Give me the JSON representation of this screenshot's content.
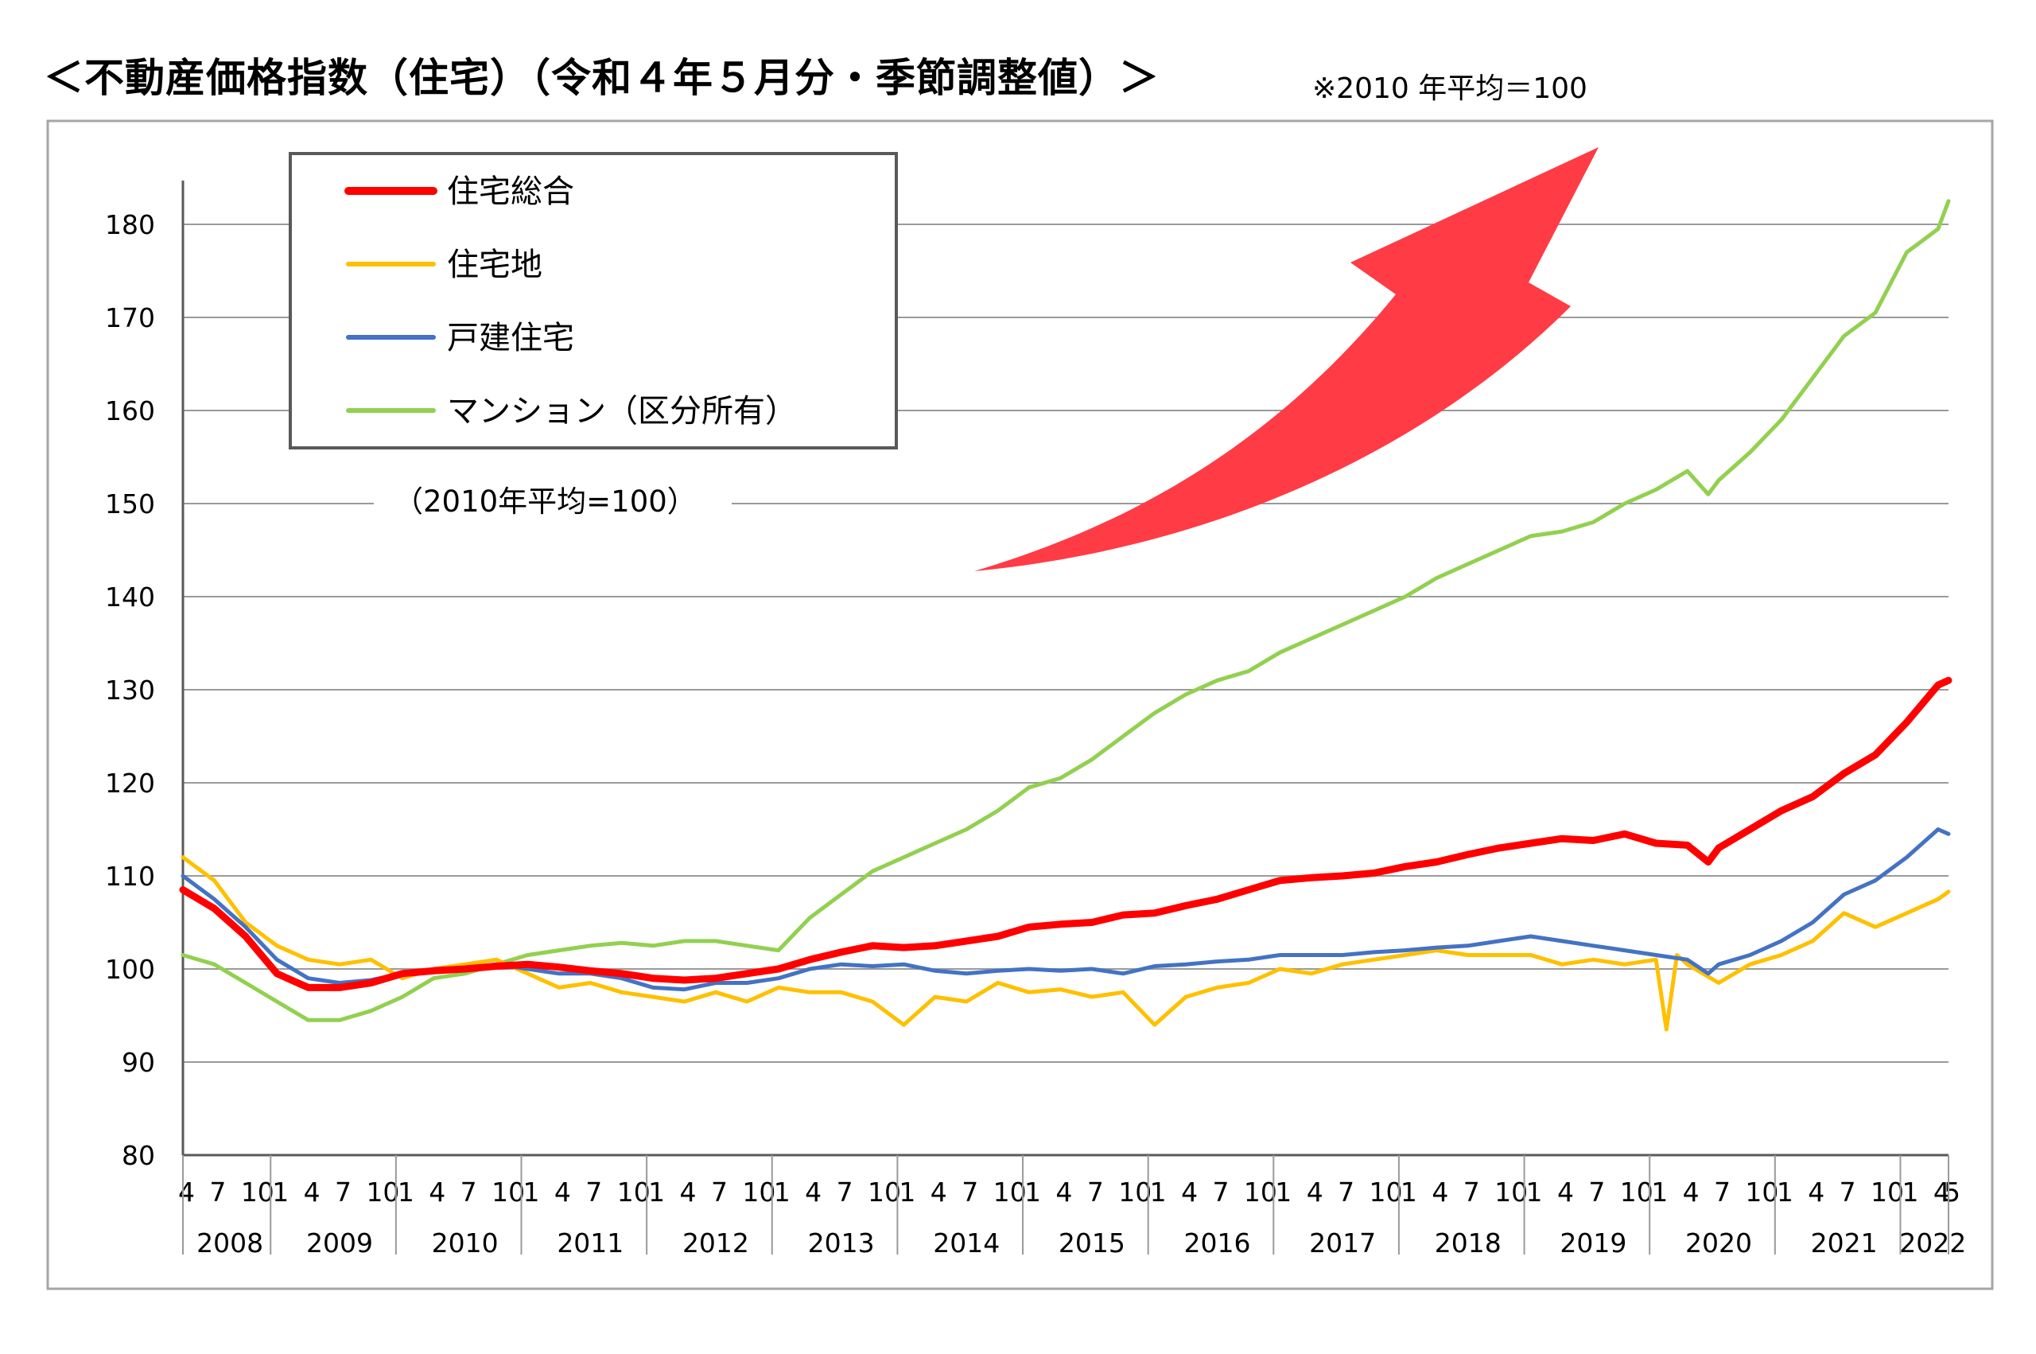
{
  "page": {
    "title": "＜不動産価格指数（住宅）（令和４年５月分・季節調整値）＞",
    "note": "※2010 年平均＝100"
  },
  "chart_data": {
    "type": "line",
    "ylim": [
      80,
      180
    ],
    "yticks": [
      80,
      90,
      100,
      110,
      120,
      130,
      140,
      150,
      160,
      170,
      180
    ],
    "grid": true,
    "legend_position": "top-left",
    "inner_note": "（2010年平均=100）",
    "x_month_labels": [
      "1",
      "4",
      "7",
      "10"
    ],
    "first_year_month_labels": [
      "4",
      "7",
      "10"
    ],
    "last_year_month_labels": [
      "1",
      "4",
      "5"
    ],
    "years": [
      "2008",
      "2009",
      "2010",
      "2011",
      "2012",
      "2013",
      "2014",
      "2015",
      "2016",
      "2017",
      "2018",
      "2019",
      "2020",
      "2021",
      "2022"
    ],
    "x_range": [
      "2008-04",
      "2022-05"
    ],
    "series": [
      {
        "name": "住宅総合",
        "color": "#ff0000",
        "points": [
          [
            "2008-04",
            108.5
          ],
          [
            "2008-07",
            106.5
          ],
          [
            "2008-10",
            103.5
          ],
          [
            "2009-01",
            99.5
          ],
          [
            "2009-04",
            98.0
          ],
          [
            "2009-07",
            98.0
          ],
          [
            "2009-10",
            98.5
          ],
          [
            "2010-01",
            99.5
          ],
          [
            "2010-04",
            99.8
          ],
          [
            "2010-07",
            100.0
          ],
          [
            "2010-10",
            100.3
          ],
          [
            "2011-01",
            100.5
          ],
          [
            "2011-04",
            100.2
          ],
          [
            "2011-07",
            99.8
          ],
          [
            "2011-10",
            99.5
          ],
          [
            "2012-01",
            99.0
          ],
          [
            "2012-04",
            98.8
          ],
          [
            "2012-07",
            99.0
          ],
          [
            "2012-10",
            99.5
          ],
          [
            "2013-01",
            100.0
          ],
          [
            "2013-04",
            101.0
          ],
          [
            "2013-07",
            101.8
          ],
          [
            "2013-10",
            102.5
          ],
          [
            "2014-01",
            102.3
          ],
          [
            "2014-04",
            102.5
          ],
          [
            "2014-07",
            103.0
          ],
          [
            "2014-10",
            103.5
          ],
          [
            "2015-01",
            104.5
          ],
          [
            "2015-04",
            104.8
          ],
          [
            "2015-07",
            105.0
          ],
          [
            "2015-10",
            105.8
          ],
          [
            "2016-01",
            106.0
          ],
          [
            "2016-04",
            106.8
          ],
          [
            "2016-07",
            107.5
          ],
          [
            "2016-10",
            108.5
          ],
          [
            "2017-01",
            109.5
          ],
          [
            "2017-04",
            109.8
          ],
          [
            "2017-07",
            110.0
          ],
          [
            "2017-10",
            110.3
          ],
          [
            "2018-01",
            111.0
          ],
          [
            "2018-04",
            111.5
          ],
          [
            "2018-07",
            112.3
          ],
          [
            "2018-10",
            113.0
          ],
          [
            "2019-01",
            113.5
          ],
          [
            "2019-04",
            114.0
          ],
          [
            "2019-07",
            113.8
          ],
          [
            "2019-10",
            114.5
          ],
          [
            "2020-01",
            113.5
          ],
          [
            "2020-04",
            113.3
          ],
          [
            "2020-06",
            111.5
          ],
          [
            "2020-07",
            113.0
          ],
          [
            "2020-10",
            115.0
          ],
          [
            "2021-01",
            117.0
          ],
          [
            "2021-04",
            118.5
          ],
          [
            "2021-07",
            121.0
          ],
          [
            "2021-10",
            123.0
          ],
          [
            "2022-01",
            126.5
          ],
          [
            "2022-04",
            130.5
          ],
          [
            "2022-05",
            131.0
          ]
        ]
      },
      {
        "name": "住宅地",
        "color": "#ffc000",
        "points": [
          [
            "2008-04",
            112.0
          ],
          [
            "2008-07",
            109.5
          ],
          [
            "2008-10",
            105.0
          ],
          [
            "2009-01",
            102.5
          ],
          [
            "2009-04",
            101.0
          ],
          [
            "2009-07",
            100.5
          ],
          [
            "2009-10",
            101.0
          ],
          [
            "2010-01",
            99.0
          ],
          [
            "2010-04",
            100.0
          ],
          [
            "2010-07",
            100.5
          ],
          [
            "2010-10",
            101.0
          ],
          [
            "2011-01",
            99.5
          ],
          [
            "2011-04",
            98.0
          ],
          [
            "2011-07",
            98.5
          ],
          [
            "2011-10",
            97.5
          ],
          [
            "2012-01",
            97.0
          ],
          [
            "2012-04",
            96.5
          ],
          [
            "2012-07",
            97.5
          ],
          [
            "2012-10",
            96.5
          ],
          [
            "2013-01",
            98.0
          ],
          [
            "2013-04",
            97.5
          ],
          [
            "2013-07",
            97.5
          ],
          [
            "2013-10",
            96.5
          ],
          [
            "2014-01",
            94.0
          ],
          [
            "2014-04",
            97.0
          ],
          [
            "2014-07",
            96.5
          ],
          [
            "2014-10",
            98.5
          ],
          [
            "2015-01",
            97.5
          ],
          [
            "2015-04",
            97.8
          ],
          [
            "2015-07",
            97.0
          ],
          [
            "2015-10",
            97.5
          ],
          [
            "2016-01",
            94.0
          ],
          [
            "2016-04",
            97.0
          ],
          [
            "2016-07",
            98.0
          ],
          [
            "2016-10",
            98.5
          ],
          [
            "2017-01",
            100.0
          ],
          [
            "2017-04",
            99.5
          ],
          [
            "2017-07",
            100.5
          ],
          [
            "2017-10",
            101.0
          ],
          [
            "2018-01",
            101.5
          ],
          [
            "2018-04",
            102.0
          ],
          [
            "2018-07",
            101.5
          ],
          [
            "2018-10",
            101.5
          ],
          [
            "2019-01",
            101.5
          ],
          [
            "2019-04",
            100.5
          ],
          [
            "2019-07",
            101.0
          ],
          [
            "2019-10",
            100.5
          ],
          [
            "2020-01",
            101.0
          ],
          [
            "2020-02",
            93.5
          ],
          [
            "2020-03",
            101.5
          ],
          [
            "2020-04",
            100.5
          ],
          [
            "2020-07",
            98.5
          ],
          [
            "2020-10",
            100.5
          ],
          [
            "2021-01",
            101.5
          ],
          [
            "2021-04",
            103.0
          ],
          [
            "2021-07",
            106.0
          ],
          [
            "2021-10",
            104.5
          ],
          [
            "2022-01",
            106.0
          ],
          [
            "2022-04",
            107.5
          ],
          [
            "2022-05",
            108.3
          ]
        ]
      },
      {
        "name": "戸建住宅",
        "color": "#4472c4",
        "points": [
          [
            "2008-04",
            110.0
          ],
          [
            "2008-07",
            107.5
          ],
          [
            "2008-10",
            104.5
          ],
          [
            "2009-01",
            101.0
          ],
          [
            "2009-04",
            99.0
          ],
          [
            "2009-07",
            98.5
          ],
          [
            "2009-10",
            98.8
          ],
          [
            "2010-01",
            99.5
          ],
          [
            "2010-04",
            99.8
          ],
          [
            "2010-07",
            100.0
          ],
          [
            "2010-10",
            100.5
          ],
          [
            "2011-01",
            100.0
          ],
          [
            "2011-04",
            99.5
          ],
          [
            "2011-07",
            99.5
          ],
          [
            "2011-10",
            99.0
          ],
          [
            "2012-01",
            98.0
          ],
          [
            "2012-04",
            97.8
          ],
          [
            "2012-07",
            98.5
          ],
          [
            "2012-10",
            98.5
          ],
          [
            "2013-01",
            99.0
          ],
          [
            "2013-04",
            100.0
          ],
          [
            "2013-07",
            100.5
          ],
          [
            "2013-10",
            100.3
          ],
          [
            "2014-01",
            100.5
          ],
          [
            "2014-04",
            99.8
          ],
          [
            "2014-07",
            99.5
          ],
          [
            "2014-10",
            99.8
          ],
          [
            "2015-01",
            100.0
          ],
          [
            "2015-04",
            99.8
          ],
          [
            "2015-07",
            100.0
          ],
          [
            "2015-10",
            99.5
          ],
          [
            "2016-01",
            100.3
          ],
          [
            "2016-04",
            100.5
          ],
          [
            "2016-07",
            100.8
          ],
          [
            "2016-10",
            101.0
          ],
          [
            "2017-01",
            101.5
          ],
          [
            "2017-04",
            101.5
          ],
          [
            "2017-07",
            101.5
          ],
          [
            "2017-10",
            101.8
          ],
          [
            "2018-01",
            102.0
          ],
          [
            "2018-04",
            102.3
          ],
          [
            "2018-07",
            102.5
          ],
          [
            "2018-10",
            103.0
          ],
          [
            "2019-01",
            103.5
          ],
          [
            "2019-04",
            103.0
          ],
          [
            "2019-07",
            102.5
          ],
          [
            "2019-10",
            102.0
          ],
          [
            "2020-01",
            101.5
          ],
          [
            "2020-04",
            101.0
          ],
          [
            "2020-06",
            99.5
          ],
          [
            "2020-07",
            100.5
          ],
          [
            "2020-10",
            101.5
          ],
          [
            "2021-01",
            103.0
          ],
          [
            "2021-04",
            105.0
          ],
          [
            "2021-07",
            108.0
          ],
          [
            "2021-10",
            109.5
          ],
          [
            "2022-01",
            112.0
          ],
          [
            "2022-04",
            115.0
          ],
          [
            "2022-05",
            114.5
          ]
        ]
      },
      {
        "name": "マンション（区分所有）",
        "color": "#92d050",
        "points": [
          [
            "2008-04",
            101.5
          ],
          [
            "2008-07",
            100.5
          ],
          [
            "2008-10",
            98.5
          ],
          [
            "2009-01",
            96.5
          ],
          [
            "2009-04",
            94.5
          ],
          [
            "2009-07",
            94.5
          ],
          [
            "2009-10",
            95.5
          ],
          [
            "2010-01",
            97.0
          ],
          [
            "2010-04",
            99.0
          ],
          [
            "2010-07",
            99.5
          ],
          [
            "2010-10",
            100.5
          ],
          [
            "2011-01",
            101.5
          ],
          [
            "2011-04",
            102.0
          ],
          [
            "2011-07",
            102.5
          ],
          [
            "2011-10",
            102.8
          ],
          [
            "2012-01",
            102.5
          ],
          [
            "2012-04",
            103.0
          ],
          [
            "2012-07",
            103.0
          ],
          [
            "2012-10",
            102.5
          ],
          [
            "2013-01",
            102.0
          ],
          [
            "2013-04",
            105.5
          ],
          [
            "2013-07",
            108.0
          ],
          [
            "2013-10",
            110.5
          ],
          [
            "2014-01",
            112.0
          ],
          [
            "2014-04",
            113.5
          ],
          [
            "2014-07",
            115.0
          ],
          [
            "2014-10",
            117.0
          ],
          [
            "2015-01",
            119.5
          ],
          [
            "2015-04",
            120.5
          ],
          [
            "2015-07",
            122.5
          ],
          [
            "2015-10",
            125.0
          ],
          [
            "2016-01",
            127.5
          ],
          [
            "2016-04",
            129.5
          ],
          [
            "2016-07",
            131.0
          ],
          [
            "2016-10",
            132.0
          ],
          [
            "2017-01",
            134.0
          ],
          [
            "2017-04",
            135.5
          ],
          [
            "2017-07",
            137.0
          ],
          [
            "2017-10",
            138.5
          ],
          [
            "2018-01",
            140.0
          ],
          [
            "2018-04",
            142.0
          ],
          [
            "2018-07",
            143.5
          ],
          [
            "2018-10",
            145.0
          ],
          [
            "2019-01",
            146.5
          ],
          [
            "2019-04",
            147.0
          ],
          [
            "2019-07",
            148.0
          ],
          [
            "2019-10",
            150.0
          ],
          [
            "2020-01",
            151.5
          ],
          [
            "2020-04",
            153.5
          ],
          [
            "2020-06",
            151.0
          ],
          [
            "2020-07",
            152.5
          ],
          [
            "2020-10",
            155.5
          ],
          [
            "2021-01",
            159.0
          ],
          [
            "2021-04",
            163.5
          ],
          [
            "2021-07",
            168.0
          ],
          [
            "2021-10",
            170.5
          ],
          [
            "2022-01",
            177.0
          ],
          [
            "2022-04",
            179.5
          ],
          [
            "2022-05",
            182.5
          ]
        ]
      }
    ]
  }
}
